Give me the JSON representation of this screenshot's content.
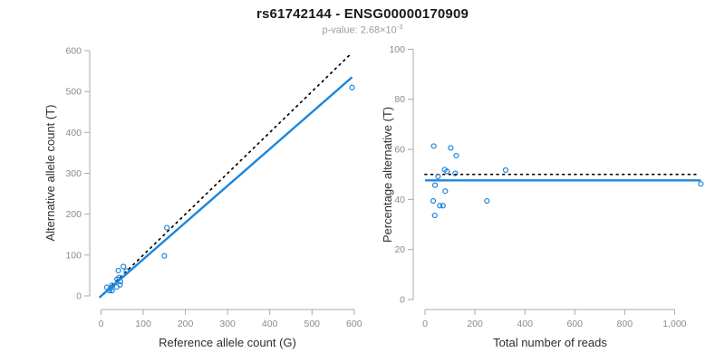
{
  "header": {
    "title": "rs61742144 - ENSG00000170909",
    "pvalue_label": "p-value: 2.68×10",
    "pvalue_exponent": "-3"
  },
  "colors": {
    "accent_blue": "#1e86dc",
    "identity_black": "#000000",
    "axis_gray": "#a9a9a9",
    "tick_label_gray": "#8a8a8a",
    "axis_title_dark": "#2e2e2e",
    "subtitle_gray": "#9b9b9b",
    "background": "#ffffff"
  },
  "chart_data": [
    {
      "type": "scatter",
      "name": "allele-counts",
      "xlabel": "Reference allele count (G)",
      "ylabel": "Alternative allele count (T)",
      "xlim": [
        0,
        620
      ],
      "ylim": [
        0,
        600
      ],
      "grid": false,
      "legend": "none",
      "xticks": [
        0,
        100,
        200,
        300,
        400,
        500,
        600
      ],
      "xtick_labels": [
        "0",
        "100",
        "200",
        "300",
        "400",
        "500",
        "600"
      ],
      "yticks": [
        0,
        100,
        200,
        300,
        400,
        500,
        600
      ],
      "ytick_labels": [
        "0",
        "100",
        "200",
        "300",
        "400",
        "500",
        "600"
      ],
      "points": [
        [
          14,
          21
        ],
        [
          41,
          62
        ],
        [
          53,
          72
        ],
        [
          38,
          41
        ],
        [
          43,
          45
        ],
        [
          60,
          61
        ],
        [
          26,
          26
        ],
        [
          22,
          18
        ],
        [
          46,
          35
        ],
        [
          20,
          13
        ],
        [
          37,
          22
        ],
        [
          45,
          27
        ],
        [
          26,
          13
        ],
        [
          156,
          167
        ],
        [
          150,
          98
        ],
        [
          595,
          510
        ]
      ],
      "lines": [
        {
          "name": "identity-line",
          "style": "dotted",
          "color": "#000000",
          "x": [
            5,
            592
          ],
          "y": [
            5,
            592
          ]
        },
        {
          "name": "fit-line",
          "style": "solid",
          "color": "#1e86dc",
          "x": [
            -4,
            595
          ],
          "y": [
            -4,
            535
          ]
        }
      ]
    },
    {
      "type": "scatter",
      "name": "percentage-vs-coverage",
      "xlabel": "Total number of reads",
      "ylabel": "Percentage alternative (T)",
      "xlim": [
        0,
        1120
      ],
      "ylim": [
        0,
        100
      ],
      "grid": false,
      "legend": "none",
      "xticks": [
        0,
        200,
        400,
        600,
        800,
        1000
      ],
      "xtick_labels": [
        "0",
        "200",
        "400",
        "600",
        "800",
        "1,000"
      ],
      "yticks": [
        0,
        20,
        40,
        60,
        80,
        100
      ],
      "ytick_labels": [
        "0",
        "20",
        "40",
        "60",
        "80",
        "100"
      ],
      "points": [
        [
          35,
          61.3
        ],
        [
          103,
          60.6
        ],
        [
          125,
          57.5
        ],
        [
          79,
          51.9
        ],
        [
          88,
          51.2
        ],
        [
          121,
          50.4
        ],
        [
          52,
          49.2
        ],
        [
          40,
          45.7
        ],
        [
          81,
          43.3
        ],
        [
          33,
          39.4
        ],
        [
          59,
          37.5
        ],
        [
          72,
          37.5
        ],
        [
          39,
          33.6
        ],
        [
          323,
          51.7
        ],
        [
          248,
          39.4
        ],
        [
          1105,
          46.2
        ]
      ],
      "lines": [
        {
          "name": "expected-50pct-line",
          "style": "dotted",
          "color": "#000000",
          "x": [
            0,
            1090
          ],
          "y": [
            50,
            50
          ]
        },
        {
          "name": "fit-line",
          "style": "solid",
          "color": "#1e86dc",
          "x": [
            0,
            1105
          ],
          "y": [
            47.6,
            47.6
          ]
        }
      ]
    }
  ]
}
